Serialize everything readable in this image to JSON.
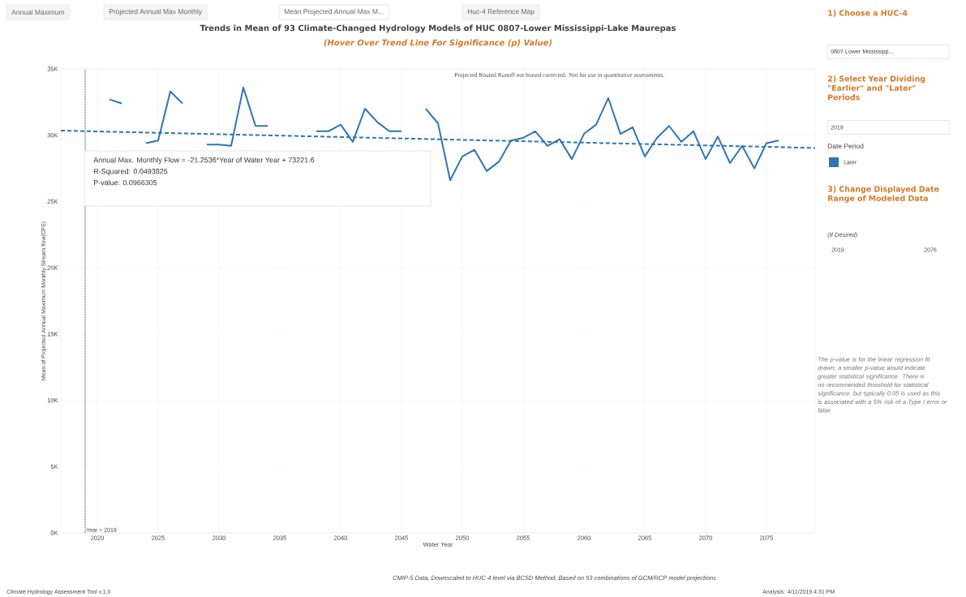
{
  "chart_data": {
    "type": "line",
    "title": "Trends in Mean of 93 Climate-Changed Hydrology Models of HUC 0807-Lower Mississippi-Lake Maurepas",
    "subtitle": "(Hover Over Trend Line For Significance (p) Value)",
    "xlabel": "Water Year",
    "ylabel": "Mean of Projected Annual Maximum Monthly Stream flow(CFS)",
    "legend_title": "Date Period",
    "legend": "right",
    "grid": true,
    "xlim": [
      2017,
      2079
    ],
    "xticks": [
      2020,
      2025,
      2030,
      2035,
      2040,
      2045,
      2050,
      2055,
      2060,
      2065,
      2070,
      2075
    ],
    "ylim": [
      0,
      35000
    ],
    "yticks": [
      {
        "value": 0,
        "label": "0K"
      },
      {
        "value": 5000,
        "label": "5K"
      },
      {
        "value": 10000,
        "label": "10K"
      },
      {
        "value": 15000,
        "label": "15K"
      },
      {
        "value": 20000,
        "label": "20K"
      },
      {
        "value": 25000,
        "label": "25K"
      },
      {
        "value": 30000,
        "label": "30K"
      },
      {
        "value": 35000,
        "label": "35K"
      }
    ],
    "x": [
      2021,
      2022,
      2023,
      2024,
      2025,
      2026,
      2027,
      2028,
      2029,
      2030,
      2031,
      2032,
      2033,
      2034,
      2035,
      2036,
      2037,
      2038,
      2039,
      2040,
      2041,
      2042,
      2043,
      2044,
      2045,
      2046,
      2047,
      2048,
      2049,
      2050,
      2051,
      2052,
      2053,
      2054,
      2055,
      2056,
      2057,
      2058,
      2059,
      2060,
      2061,
      2062,
      2063,
      2064,
      2065,
      2066,
      2067,
      2068,
      2069,
      2070,
      2071,
      2072,
      2073,
      2074,
      2075,
      2076
    ],
    "series": [
      {
        "name": "Later",
        "color": "#2e75b6",
        "values": [
          32700,
          32400,
          null,
          29400,
          29600,
          33300,
          32400,
          null,
          29300,
          29300,
          29200,
          33600,
          30700,
          30700,
          null,
          null,
          null,
          30300,
          30300,
          30800,
          29500,
          32000,
          31000,
          30300,
          30300,
          null,
          32000,
          30900,
          26600,
          28400,
          28900,
          27300,
          28000,
          29600,
          29800,
          30300,
          29200,
          29700,
          28200,
          30100,
          30800,
          32800,
          30100,
          30600,
          28400,
          29800,
          30700,
          29500,
          30300,
          28200,
          29900,
          27900,
          29200,
          27500,
          29400,
          29600
        ]
      },
      {
        "type": "line",
        "color": "#2e75b6",
        "line_style": "dashed",
        "x": [
          2017,
          2079
        ],
        "values": [
          30350,
          29040
        ]
      }
    ],
    "ref_lines": [
      {
        "axis": "x",
        "value": 2019,
        "label": "Year = 2019",
        "color": "#333333",
        "line_style": "dotted"
      }
    ],
    "annotations": [
      "Annual Maximum",
      "Projected Annual Max Monthly",
      "Mean Projected Annual Max M...",
      "Huc-4 Reference Map",
      "Projected Routed Runoff not biased corrected.  Not for use in quantitative assessments.",
      "Annual Max. Monthly Flow = -21.2536*Year of Water Year + 73221.6",
      "R-Squared: 0.0493825",
      "P-value: 0.0966305",
      "1) Choose a HUC-4",
      "0807-Lower Mississipp...",
      "2) Select Year Dividing \"Earlier\" and \"Later\" Periods",
      "2019",
      "3) Change Displayed Date Range of Modeled Data",
      "(If Desired)",
      "2019",
      "2076",
      "The p-value is for the linear regression fit drawn; a smaller p-value would indicate greater statistical significance. There is no recommended threshold for statistical significance, but typically 0.05 is used as this is associated with a 5% risk of a Type I error or false",
      "CMIP-5 Data, Downscaled to HUC-4 level via BCSD Method, Based on 93 combinations of GCM/RCP model projections",
      "Climate Hydrology Assessment Tool v.1.0",
      "Analysis: 4/11/2019 4:31 PM"
    ]
  }
}
